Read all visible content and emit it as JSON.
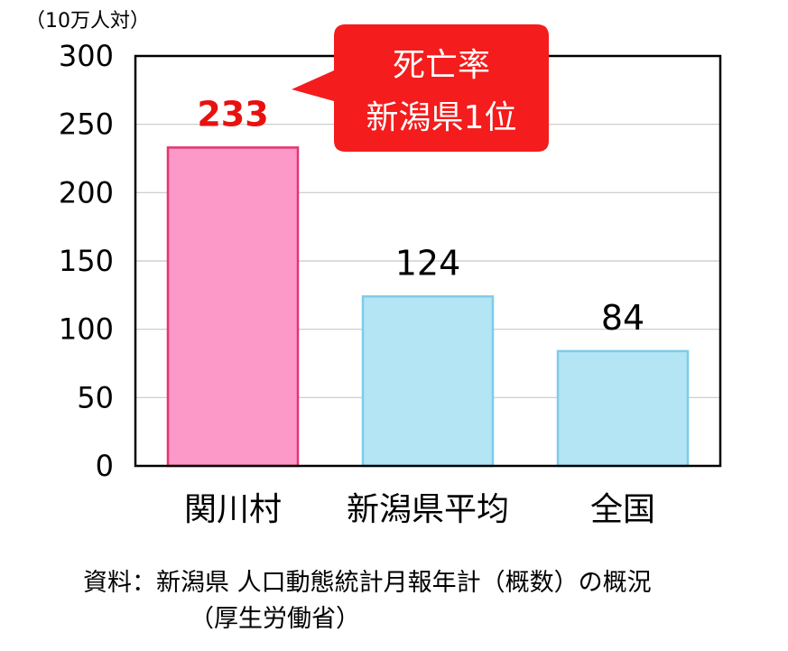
{
  "chart_data": {
    "type": "bar",
    "unit_label": "（10万人対）",
    "categories": [
      "関川村",
      "新潟県平均",
      "全国"
    ],
    "values": [
      233,
      124,
      84
    ],
    "value_labels": [
      "233",
      "124",
      "84"
    ],
    "ylim": [
      0,
      300
    ],
    "yticks": [
      0,
      50,
      100,
      150,
      200,
      250,
      300
    ],
    "ytick_labels": [
      "0",
      "50",
      "100",
      "150",
      "200",
      "250",
      "300"
    ],
    "grid": true,
    "colors": {
      "highlight_fill": "#fc99c9",
      "highlight_stroke": "#e8326f",
      "normal_fill": "#b3e5f5",
      "normal_stroke": "#7fcbe9",
      "highlight_label": "#e8110f",
      "callout": "#f41c1c"
    },
    "highlight_index": 0,
    "callout": {
      "lines": [
        "死亡率",
        "新潟県1位"
      ]
    }
  },
  "source": {
    "line1": "資料：新潟県 人口動態統計月報年計（概数）の概況",
    "line2": "（厚生労働省）"
  }
}
